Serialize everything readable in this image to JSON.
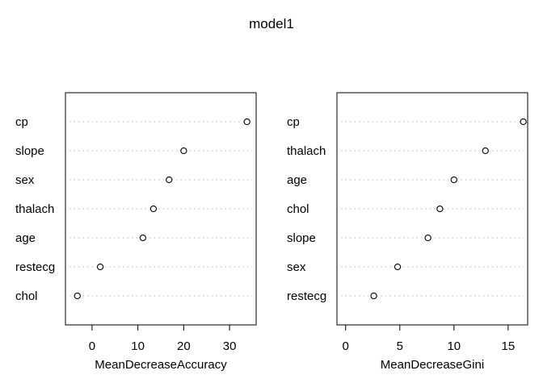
{
  "title": "model1",
  "chart_data": [
    {
      "type": "scatter",
      "xlabel": "MeanDecreaseAccuracy",
      "categories": [
        "cp",
        "slope",
        "sex",
        "thalach",
        "age",
        "restecg",
        "chol"
      ],
      "values": [
        33.8,
        20.0,
        16.8,
        13.4,
        11.1,
        1.8,
        -3.2
      ],
      "xlim": [
        -5.8,
        35.8
      ],
      "xticks": [
        0,
        10,
        20,
        30
      ],
      "grid": "dotted horizontal"
    },
    {
      "type": "scatter",
      "xlabel": "MeanDecreaseGini",
      "categories": [
        "cp",
        "thalach",
        "age",
        "chol",
        "slope",
        "sex",
        "restecg"
      ],
      "values": [
        16.4,
        12.9,
        10.0,
        8.7,
        7.6,
        4.8,
        2.6
      ],
      "xlim": [
        -0.8,
        16.8
      ],
      "xticks": [
        0,
        5,
        10,
        15
      ],
      "grid": "dotted horizontal"
    }
  ]
}
